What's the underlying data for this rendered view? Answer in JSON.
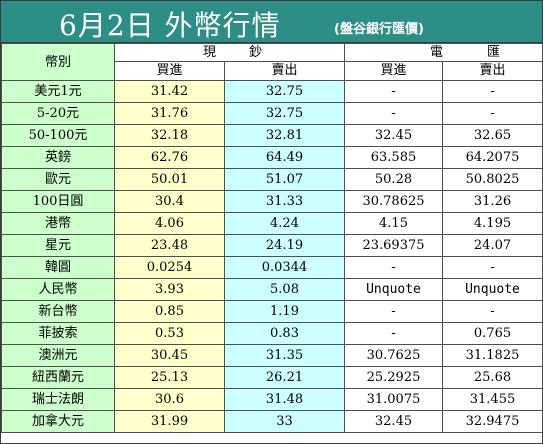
{
  "header": {
    "title": "6月2日 外幣行情",
    "subtitle": "(盤谷銀行匯價)"
  },
  "columns": {
    "currency": "幣別",
    "cash_chars": [
      "現",
      "鈔"
    ],
    "wire_chars": [
      "電",
      "匯"
    ],
    "buy": "買進",
    "sell": "賣出"
  },
  "rows": [
    {
      "name": "美元1元",
      "cash_buy": "31.42",
      "cash_sell": "32.75",
      "wire_buy": "-",
      "wire_sell": "-"
    },
    {
      "name": "5-20元",
      "cash_buy": "31.76",
      "cash_sell": "32.75",
      "wire_buy": "-",
      "wire_sell": "-"
    },
    {
      "name": "50-100元",
      "cash_buy": "32.18",
      "cash_sell": "32.81",
      "wire_buy": "32.45",
      "wire_sell": "32.65"
    },
    {
      "name": "英鎊",
      "cash_buy": "62.76",
      "cash_sell": "64.49",
      "wire_buy": "63.585",
      "wire_sell": "64.2075"
    },
    {
      "name": "歐元",
      "cash_buy": "50.01",
      "cash_sell": "51.07",
      "wire_buy": "50.28",
      "wire_sell": "50.8025"
    },
    {
      "name": "100日圓",
      "cash_buy": "30.4",
      "cash_sell": "31.33",
      "wire_buy": "30.78625",
      "wire_sell": "31.26"
    },
    {
      "name": "港幣",
      "cash_buy": "4.06",
      "cash_sell": "4.24",
      "wire_buy": "4.15",
      "wire_sell": "4.195"
    },
    {
      "name": "星元",
      "cash_buy": "23.48",
      "cash_sell": "24.19",
      "wire_buy": "23.69375",
      "wire_sell": "24.07"
    },
    {
      "name": "韓圓",
      "cash_buy": "0.0254",
      "cash_sell": "0.0344",
      "wire_buy": "-",
      "wire_sell": "-"
    },
    {
      "name": "人民幣",
      "cash_buy": "3.93",
      "cash_sell": "5.08",
      "wire_buy": "Unquote",
      "wire_sell": "Unquote"
    },
    {
      "name": "新台幣",
      "cash_buy": "0.85",
      "cash_sell": "1.19",
      "wire_buy": "-",
      "wire_sell": "-"
    },
    {
      "name": "菲披索",
      "cash_buy": "0.53",
      "cash_sell": "0.83",
      "wire_buy": "-",
      "wire_sell": "0.765"
    },
    {
      "name": "澳洲元",
      "cash_buy": "30.45",
      "cash_sell": "31.35",
      "wire_buy": "30.7625",
      "wire_sell": "31.1825"
    },
    {
      "name": "紐西蘭元",
      "cash_buy": "25.13",
      "cash_sell": "26.21",
      "wire_buy": "25.2925",
      "wire_sell": "25.68"
    },
    {
      "name": "瑞士法朗",
      "cash_buy": "30.6",
      "cash_sell": "31.48",
      "wire_buy": "31.0075",
      "wire_sell": "31.455"
    },
    {
      "name": "加拿大元",
      "cash_buy": "31.99",
      "cash_sell": "33",
      "wire_buy": "32.45",
      "wire_sell": "32.9475"
    }
  ],
  "colors": {
    "banner": "#2d8e86",
    "name_column": "#ccffcc",
    "cash_buy_column": "#ffffcc",
    "cash_sell_column": "#ccffff",
    "wire_columns": "#ffffff"
  }
}
